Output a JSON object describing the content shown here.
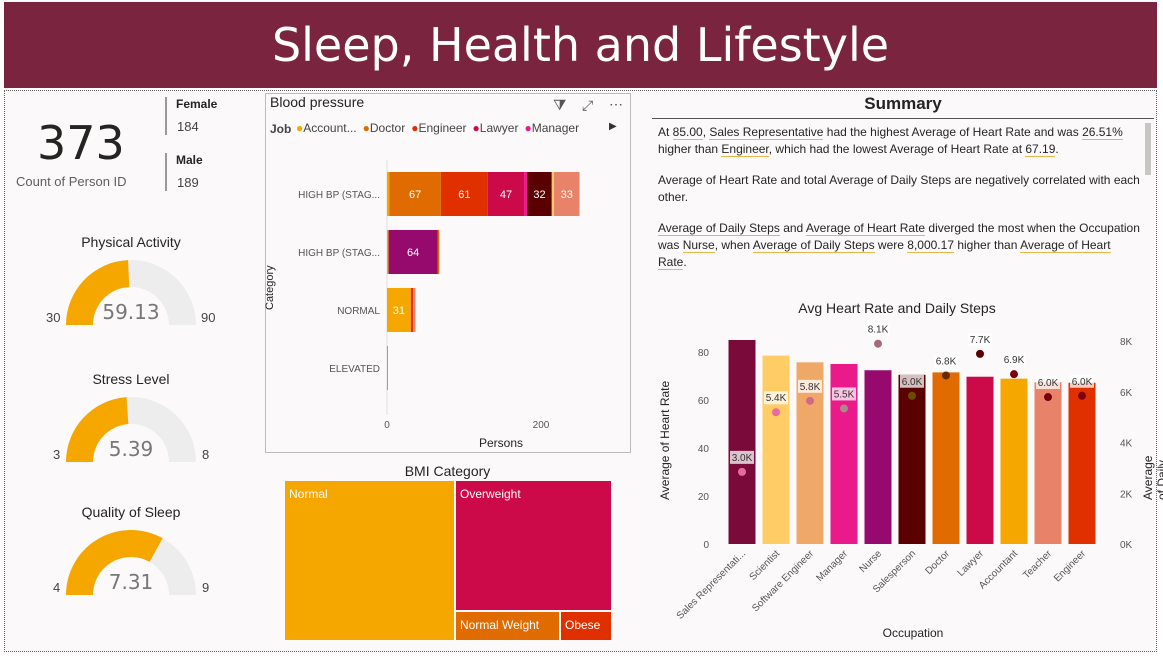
{
  "header": {
    "title": "Sleep, Health and Lifestyle"
  },
  "kpi": {
    "count_value": "373",
    "count_label": "Count of Person ID",
    "female_label": "Female",
    "female_value": "184",
    "male_label": "Male",
    "male_value": "189"
  },
  "gauges": [
    {
      "title": "Physical Activity",
      "min": "30",
      "max": "90",
      "value": "59.13",
      "fraction": 0.4855
    },
    {
      "title": "Stress Level",
      "min": "3",
      "max": "8",
      "value": "5.39",
      "fraction": 0.478
    },
    {
      "title": "Quality of Sleep",
      "min": "4",
      "max": "9",
      "value": "7.31",
      "fraction": 0.662
    }
  ],
  "bp_chart": {
    "title": "Blood pressure",
    "legend_title": "Job",
    "legend": [
      {
        "name": "Account...",
        "color": "#f5a700"
      },
      {
        "name": "Doctor",
        "color": "#e06b00"
      },
      {
        "name": "Engineer",
        "color": "#e03000"
      },
      {
        "name": "Lawyer",
        "color": "#cc0a4a"
      },
      {
        "name": "Manager",
        "color": "#ea1a8a"
      }
    ],
    "ylabel": "Category",
    "xlabel": "Persons",
    "ticks": [
      "0",
      "200"
    ]
  },
  "chart_data": [
    {
      "type": "bar",
      "title": "Blood pressure",
      "orientation": "horizontal-stacked",
      "xlabel": "Persons",
      "ylabel": "Category",
      "xlim": [
        0,
        260
      ],
      "categories": [
        "HIGH BP (STAG...",
        "HIGH BP (STAG...",
        "NORMAL",
        "ELEVATED"
      ],
      "rows": [
        {
          "category": "HIGH BP (STAG...",
          "segments": [
            {
              "value": 3,
              "color": "#f5a700",
              "label": ""
            },
            {
              "value": 67,
              "color": "#e06b00",
              "label": "67"
            },
            {
              "value": 61,
              "color": "#e03000",
              "label": "61"
            },
            {
              "value": 47,
              "color": "#cc0a4a",
              "label": "47"
            },
            {
              "value": 4,
              "color": "#ea1a8a",
              "label": ""
            },
            {
              "value": 32,
              "color": "#5a0000",
              "label": "32"
            },
            {
              "value": 3,
              "color": "#ffcc66",
              "label": ""
            },
            {
              "value": 33,
              "color": "#e8836a",
              "label": "33"
            }
          ]
        },
        {
          "category": "HIGH BP (STAG...",
          "segments": [
            {
              "value": 2,
              "color": "#f5a700",
              "label": ""
            },
            {
              "value": 64,
              "color": "#960a6e",
              "label": "64"
            },
            {
              "value": 2,
              "color": "#e06b00",
              "label": ""
            }
          ]
        },
        {
          "category": "NORMAL",
          "segments": [
            {
              "value": 31,
              "color": "#f5a700",
              "label": "31"
            },
            {
              "value": 3,
              "color": "#e03000",
              "label": ""
            },
            {
              "value": 3,
              "color": "#e8836a",
              "label": ""
            }
          ]
        },
        {
          "category": "ELEVATED",
          "segments": [
            {
              "value": 1,
              "color": "#e8836a",
              "label": ""
            }
          ]
        }
      ]
    },
    {
      "type": "bar",
      "title": "Avg Heart Rate and Daily Steps",
      "xlabel": "Occupation",
      "ylabel": "Average of Heart Rate",
      "y2label": "Average of Daily Steps",
      "ylim": [
        0,
        90
      ],
      "y2lim": [
        0,
        8000
      ],
      "yticks": [
        "0",
        "20",
        "40",
        "60",
        "80"
      ],
      "y2ticks": [
        "0K",
        "2K",
        "4K",
        "6K",
        "8K"
      ],
      "categories": [
        "Sales Representati...",
        "Scientist",
        "Software Engineer",
        "Manager",
        "Nurse",
        "Salesperson",
        "Doctor",
        "Lawyer",
        "Accountant",
        "Teacher",
        "Engineer"
      ],
      "heart_rate": [
        85,
        78.5,
        75.7,
        75,
        72.4,
        70.5,
        71.5,
        69.7,
        68.9,
        67.4,
        67.2
      ],
      "daily_steps": [
        3000,
        5350,
        5800,
        5500,
        8050,
        6000,
        6800,
        7650,
        6850,
        5950,
        6000
      ],
      "step_labels": [
        "3.0K",
        "5.4K",
        "5.8K",
        "5.5K",
        "8.1K",
        "6.0K",
        "6.8K",
        "7.7K",
        "6.9K",
        "6.0K",
        "6.0K"
      ],
      "bar_colors": [
        "#7a0a3a",
        "#ffcc66",
        "#f0a868",
        "#ea1a8a",
        "#960a6e",
        "#5a0000",
        "#e06b00",
        "#cc0a4a",
        "#f5a700",
        "#e8836a",
        "#e03000"
      ],
      "dot_colors": [
        "#e86a9a",
        "#ea6aa0",
        "#d06a8a",
        "#a88a8a",
        "#a86a7a",
        "#6a4a00",
        "#6a2a00",
        "#5a0000",
        "#7a0010",
        "#7a0010",
        "#7a0010"
      ]
    },
    {
      "type": "treemap",
      "title": "BMI Category",
      "items": [
        {
          "name": "Normal",
          "color": "#f5a700"
        },
        {
          "name": "Overweight",
          "color": "#cc0a4a"
        },
        {
          "name": "Normal Weight",
          "color": "#e06b00"
        },
        {
          "name": "Obese",
          "color": "#e03000"
        }
      ]
    }
  ],
  "summary": {
    "title": "Summary",
    "p1": {
      "a": "At ",
      "v1": "85.00",
      "b": ", ",
      "v2": "Sales Representative",
      "c": " had the highest Average of Heart Rate and was ",
      "v3": "26.51%",
      "d": " higher than ",
      "v4": "Engineer",
      "e": ", which had the lowest Average of Heart Rate at ",
      "v5": "67.19",
      "f": "."
    },
    "p2": "Average of Heart Rate and total Average of Daily Steps are negatively correlated with each other.",
    "p3": {
      "v1": "Average of Daily Steps",
      "a": " and ",
      "v2": "Average of Heart Rate",
      "b": " diverged the most when the Occupation was ",
      "v3": "Nurse",
      "c": ", when ",
      "v4": "Average of Daily Steps",
      "d": " were ",
      "v5": "8,000.17",
      "e": " higher than ",
      "v6": "Average of Heart Rate",
      "f": "."
    }
  },
  "bmi": {
    "title": "BMI Category"
  }
}
